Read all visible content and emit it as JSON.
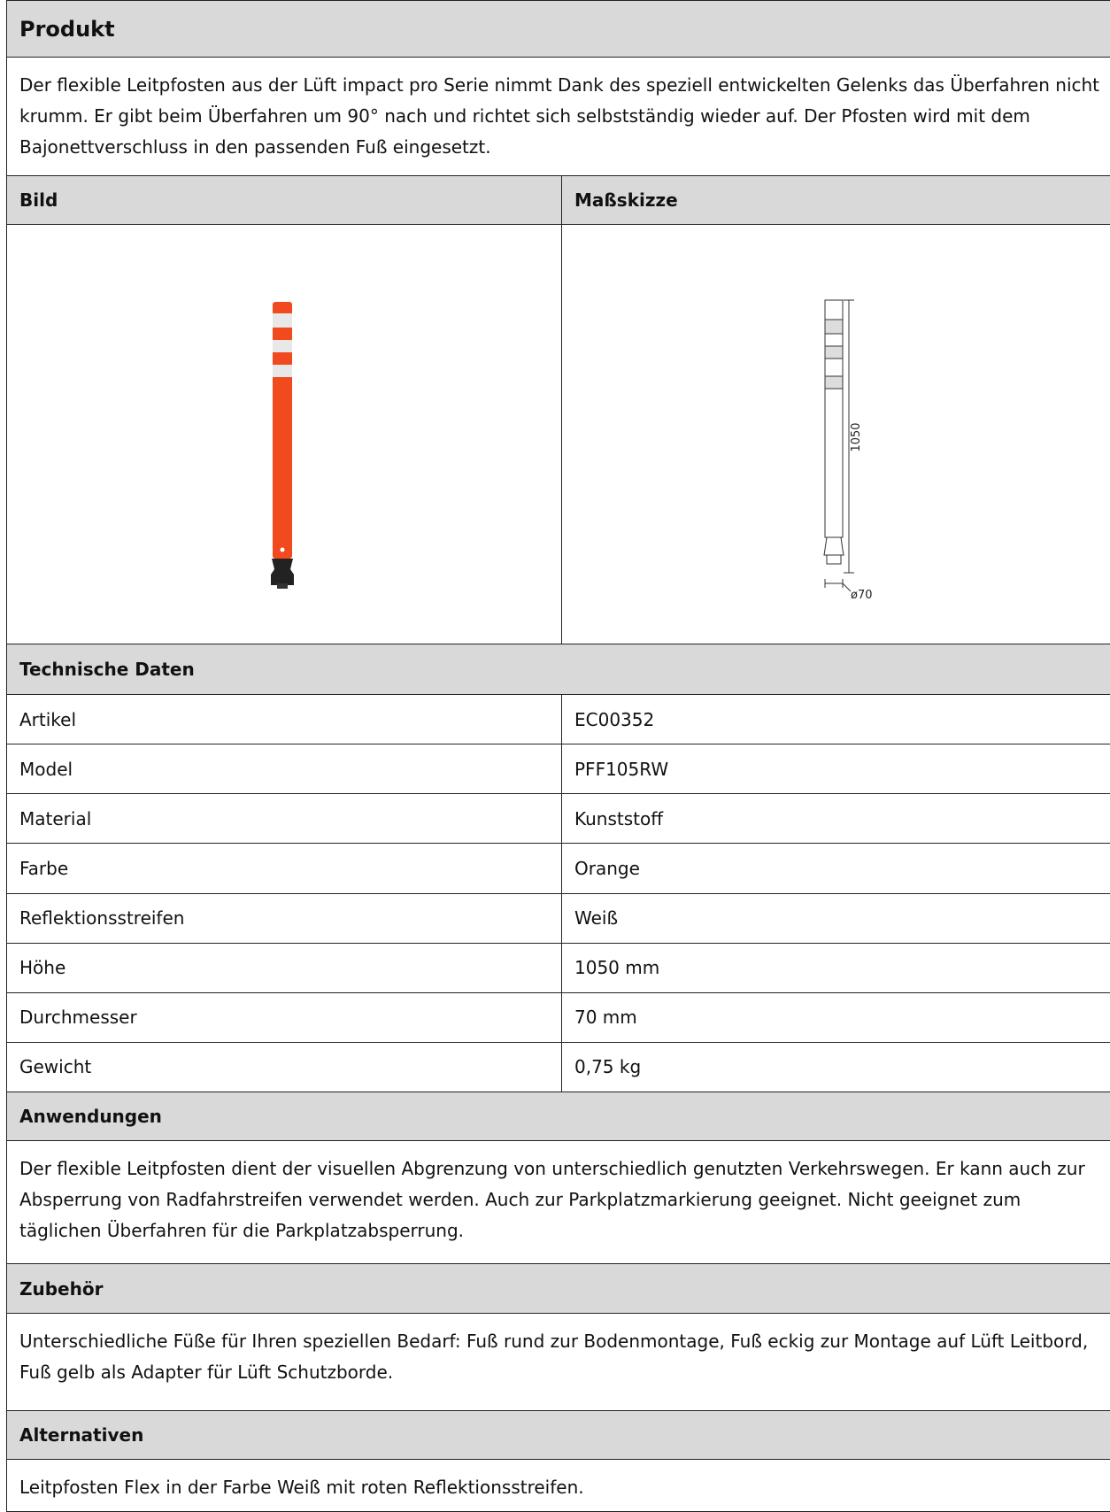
{
  "header": {
    "title": "Produkt"
  },
  "description": "Der flexible Leitpfosten aus der Lüft impact pro Serie nimmt Dank des speziell entwickelten Gelenks das Überfahren nicht krumm. Er gibt beim Überfahren um 90° nach und richtet sich selbstständig wieder auf. Der Pfosten wird mit dem Bajonettverschluss in den passenden Fuß eingesetzt.",
  "images": {
    "headers": [
      "Bild",
      "Maßskizze"
    ],
    "sketch": {
      "height_label": "1050",
      "diameter_label": "ø70"
    }
  },
  "technical": {
    "title": "Technische Daten",
    "rows": [
      [
        "Artikel",
        "EC00352"
      ],
      [
        "Model",
        "PFF105RW"
      ],
      [
        "Material",
        "Kunststoff"
      ],
      [
        "Farbe",
        "Orange"
      ],
      [
        "Reflektionsstreifen",
        "Weiß"
      ],
      [
        "Höhe",
        "1050 mm"
      ],
      [
        "Durchmesser",
        "70 mm"
      ],
      [
        "Gewicht",
        "0,75 kg"
      ]
    ]
  },
  "applications": {
    "title": "Anwendungen",
    "text": "Der flexible Leitpfosten dient der visuellen Abgrenzung von unterschiedlich genutzten Verkehrswegen. Er kann auch zur Absperrung von Radfahrstreifen verwendet werden. Auch zur Parkplatzmarkierung geeignet. Nicht geeignet zum täglichen Überfahren für die Parkplatzabsperrung."
  },
  "accessories": {
    "title": "Zubehör",
    "text": "Unterschiedliche Füße für Ihren speziellen Bedarf: Fuß rund zur Bodenmontage, Fuß eckig zur Montage auf Lüft Leitbord, Fuß gelb als Adapter für Lüft Schutzborde."
  },
  "alternatives": {
    "title": "Alternativen",
    "text": "Leitpfosten Flex in der Farbe Weiß mit roten Reflektionsstreifen."
  }
}
